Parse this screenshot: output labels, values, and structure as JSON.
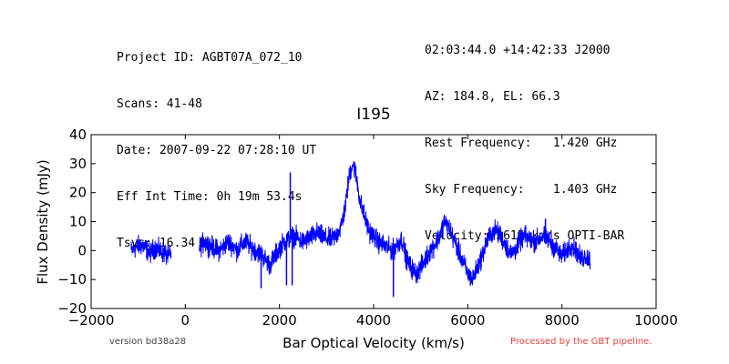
{
  "header": {
    "left_lines": [
      "Project ID: AGBT07A_072_10",
      "Scans: 41-48",
      "Date: 2007-09-22 07:28:10 UT",
      "Eff Int Time: 0h 19m 53.4s",
      "Tsys: 16.34 K"
    ],
    "right_lines": [
      "02:03:44.0 +14:42:33 J2000",
      "AZ: 184.8, EL: 66.3",
      "Rest Frequency:   1.420 GHz",
      "Sky Frequency:    1.403 GHz",
      "Velocity: 3615 km/s OPTI-BAR"
    ]
  },
  "footer": {
    "version": "version bd38a28",
    "pipeline": "Processed by the GBT pipeline."
  },
  "colors": {
    "line": "#0000ff",
    "pipeline_text": "#e84040"
  },
  "chart_data": {
    "type": "line",
    "title": "I195",
    "xlabel": "Bar Optical Velocity (km/s)",
    "ylabel": "Flux Density (mJy)",
    "xlim": [
      -2000,
      10000
    ],
    "ylim": [
      -20,
      40
    ],
    "xticks": [
      -2000,
      0,
      2000,
      4000,
      6000,
      8000,
      10000
    ],
    "yticks": [
      -20,
      -10,
      0,
      10,
      20,
      30,
      40
    ],
    "xtick_labels": [
      "−2000",
      "0",
      "2000",
      "4000",
      "6000",
      "8000",
      "10000"
    ],
    "ytick_labels": [
      "−20",
      "−10",
      "0",
      "10",
      "20",
      "30",
      "40"
    ],
    "grid": false,
    "series": [
      {
        "segments": [
          {
            "x": [
              -1150,
              -1050,
              -950,
              -850,
              -750,
              -650,
              -550,
              -450,
              -350,
              -300
            ],
            "y": [
              0,
              1,
              2,
              1,
              -1,
              1,
              0,
              -1,
              -2,
              -1
            ]
          },
          {
            "x": [
              300,
              400,
              500,
              600,
              700,
              800,
              900,
              1000,
              1100,
              1200,
              1300,
              1400,
              1500,
              1600,
              1700,
              1800,
              1900,
              2000,
              2100,
              2200,
              2300,
              2400,
              2500,
              2600,
              2700,
              2800,
              2900,
              3000,
              3100,
              3200,
              3300,
              3400,
              3450,
              3500,
              3550,
              3600,
              3650,
              3700,
              3750,
              3800,
              3900,
              4000,
              4100,
              4200,
              4300,
              4400,
              4500,
              4600,
              4700,
              4800,
              4900,
              5000,
              5100,
              5200,
              5300,
              5400,
              5500,
              5600,
              5700,
              5800,
              5900,
              6000,
              6100,
              6200,
              6300,
              6400,
              6500,
              6600,
              6700,
              6800,
              6900,
              7000,
              7100,
              7200,
              7300,
              7400,
              7500,
              7600,
              7700,
              7800,
              7900,
              8000,
              8100,
              8200,
              8300,
              8400,
              8500,
              8600
            ],
            "y": [
              1,
              3,
              2,
              1,
              0,
              1,
              3,
              2,
              0,
              2,
              3,
              1,
              0,
              -1,
              -3,
              -5,
              -2,
              1,
              3,
              4,
              5,
              4,
              3,
              4,
              5,
              6,
              5,
              4,
              4,
              5,
              8,
              15,
              22,
              27,
              30,
              28,
              24,
              18,
              15,
              12,
              7,
              5,
              3,
              2,
              1,
              0,
              2,
              4,
              -3,
              -6,
              -8,
              -6,
              -3,
              0,
              2,
              5,
              10,
              8,
              4,
              0,
              -4,
              -8,
              -10,
              -6,
              -2,
              3,
              6,
              7,
              5,
              2,
              -1,
              0,
              3,
              5,
              4,
              3,
              4,
              5,
              4,
              2,
              0,
              -2,
              0,
              2,
              0,
              -3,
              -2,
              -3
            ]
          }
        ]
      }
    ],
    "spikes": [
      {
        "x": 1610,
        "y": -13
      },
      {
        "x": 2150,
        "y": -12
      },
      {
        "x": 2230,
        "y": 27
      },
      {
        "x": 2270,
        "y": -12
      },
      {
        "x": 4420,
        "y": -16
      },
      {
        "x": 7650,
        "y": 11
      }
    ]
  }
}
